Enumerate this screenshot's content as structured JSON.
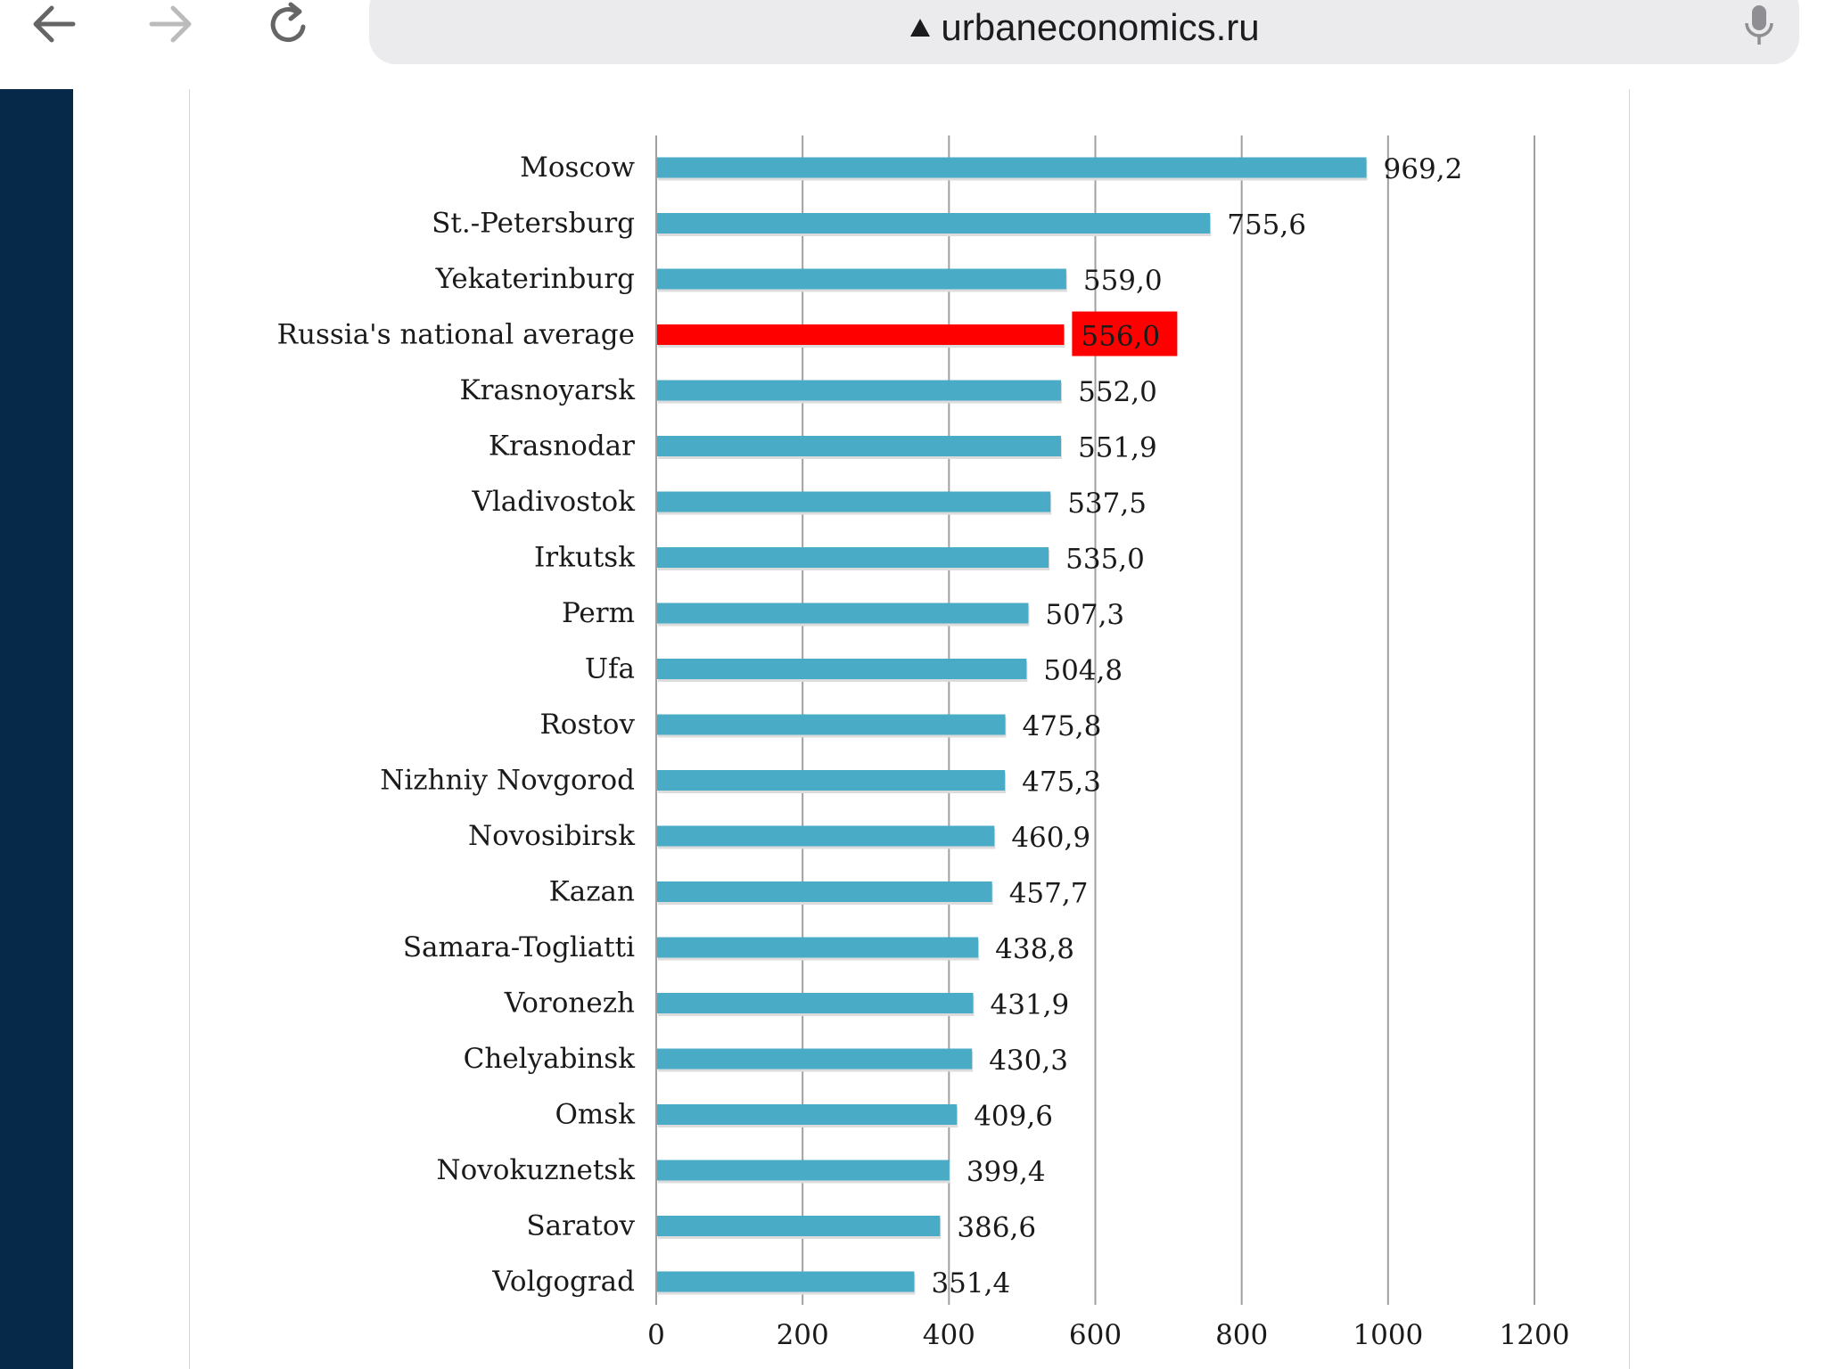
{
  "browser": {
    "url": "urbaneconomics.ru",
    "icons": {
      "back": "back-arrow-icon",
      "forward": "forward-arrow-icon",
      "reload": "reload-icon",
      "lock": "lock-triangle-icon",
      "mic": "microphone-icon"
    }
  },
  "chart_data": {
    "type": "bar",
    "orientation": "horizontal",
    "categories": [
      "Moscow",
      "St.-Petersburg",
      "Yekaterinburg",
      "Russia's national average",
      "Krasnoyarsk",
      "Krasnodar",
      "Vladivostok",
      "Irkutsk",
      "Perm",
      "Ufa",
      "Rostov",
      "Nizhniy Novgorod",
      "Novosibirsk",
      "Kazan",
      "Samara-Togliatti",
      "Voronezh",
      "Chelyabinsk",
      "Omsk",
      "Novokuznetsk",
      "Saratov",
      "Volgograd"
    ],
    "values": [
      969.2,
      755.6,
      559.0,
      556.0,
      552.0,
      551.9,
      537.5,
      535.0,
      507.3,
      504.8,
      475.8,
      475.3,
      460.9,
      457.7,
      438.8,
      431.9,
      430.3,
      409.6,
      399.4,
      386.6,
      351.4
    ],
    "value_labels": [
      "969,2",
      "755,6",
      "559,0",
      "556,0",
      "552,0",
      "551,9",
      "537,5",
      "535,0",
      "507,3",
      "504,8",
      "475,8",
      "475,3",
      "460,9",
      "457,7",
      "438,8",
      "431,9",
      "430,3",
      "409,6",
      "399,4",
      "386,6",
      "351,4"
    ],
    "highlight_index": 3,
    "xlim": [
      0,
      1200
    ],
    "xticks": [
      0,
      200,
      400,
      600,
      800,
      1000,
      1200
    ],
    "grid": true,
    "colors": {
      "bar": "#4aabc6",
      "highlight": "#ff0000",
      "label_highlight_bg": "#ff0000",
      "grid": "#a0a0a0"
    }
  }
}
